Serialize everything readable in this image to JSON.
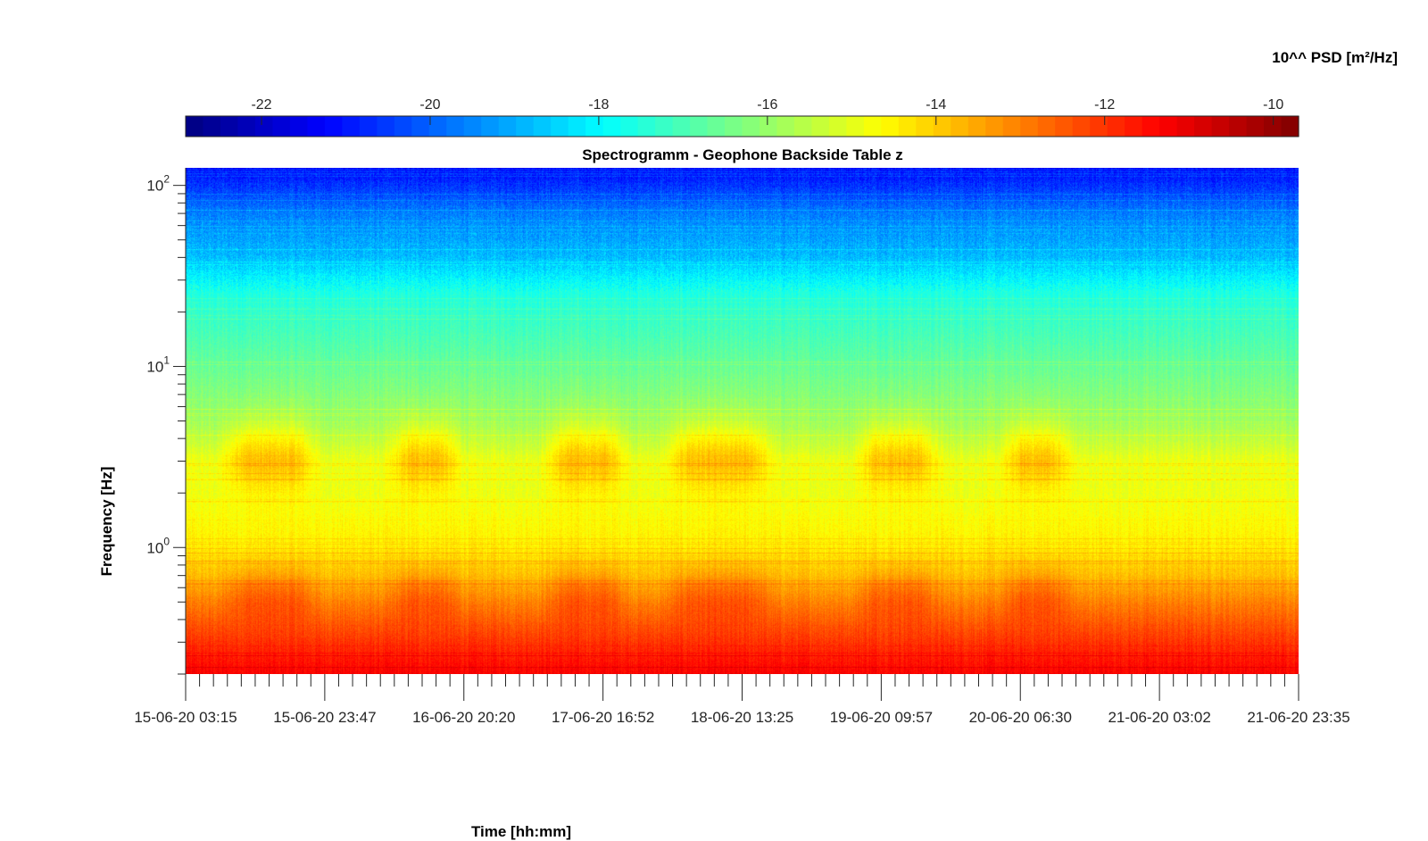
{
  "chart_data": {
    "type": "heatmap",
    "title": "Spectrogramm - Geophone Backside Table z",
    "xlabel": "Time [hh:mm]",
    "ylabel": "Frequency [Hz]",
    "colorbar_label": "10^^ PSD [m²/Hz]",
    "colorbar_ticks": [
      "-22",
      "-20",
      "-18",
      "-16",
      "-14",
      "-12",
      "-10"
    ],
    "colorbar_tick_values": [
      -22,
      -20,
      -18,
      -16,
      -14,
      -12,
      -10
    ],
    "color_range": [
      -22.9,
      -9.7
    ],
    "colormap": "jet",
    "colorbar_location": "top",
    "x_tick_labels": [
      "15-06-20 03:15",
      "15-06-20 23:47",
      "16-06-20 20:20",
      "17-06-20 16:52",
      "18-06-20 13:25",
      "19-06-20 09:57",
      "20-06-20 06:30",
      "21-06-20 03:02",
      "21-06-20 23:35"
    ],
    "y_scale": "log",
    "y_range_hz": [
      0.2,
      125
    ],
    "y_ticks": [
      {
        "value": 1,
        "base": "10",
        "exp": "0"
      },
      {
        "value": 10,
        "base": "10",
        "exp": "1"
      },
      {
        "value": 100,
        "base": "10",
        "exp": "2"
      }
    ],
    "grid": false,
    "day_activity_bands": [
      {
        "start_frac": 0.04,
        "end_frac": 0.11
      },
      {
        "start_frac": 0.19,
        "end_frac": 0.24
      },
      {
        "start_frac": 0.33,
        "end_frac": 0.39
      },
      {
        "start_frac": 0.44,
        "end_frac": 0.52
      },
      {
        "start_frac": 0.61,
        "end_frac": 0.67
      },
      {
        "start_frac": 0.74,
        "end_frac": 0.79
      }
    ],
    "psd_profile": [
      {
        "freq_hz": 0.2,
        "log_psd": -11.3
      },
      {
        "freq_hz": 0.3,
        "log_psd": -12.0
      },
      {
        "freq_hz": 0.5,
        "log_psd": -13.0
      },
      {
        "freq_hz": 0.7,
        "log_psd": -13.8
      },
      {
        "freq_hz": 1,
        "log_psd": -14.4
      },
      {
        "freq_hz": 2,
        "log_psd": -14.9
      },
      {
        "freq_hz": 3,
        "log_psd": -14.9
      },
      {
        "freq_hz": 5,
        "log_psd": -15.9
      },
      {
        "freq_hz": 10,
        "log_psd": -16.6
      },
      {
        "freq_hz": 20,
        "log_psd": -17.3
      },
      {
        "freq_hz": 26,
        "log_psd": -17.6
      },
      {
        "freq_hz": 40,
        "log_psd": -18.8
      },
      {
        "freq_hz": 70,
        "log_psd": -19.6
      },
      {
        "freq_hz": 100,
        "log_psd": -20.6
      },
      {
        "freq_hz": 125,
        "log_psd": -21.2
      }
    ]
  }
}
